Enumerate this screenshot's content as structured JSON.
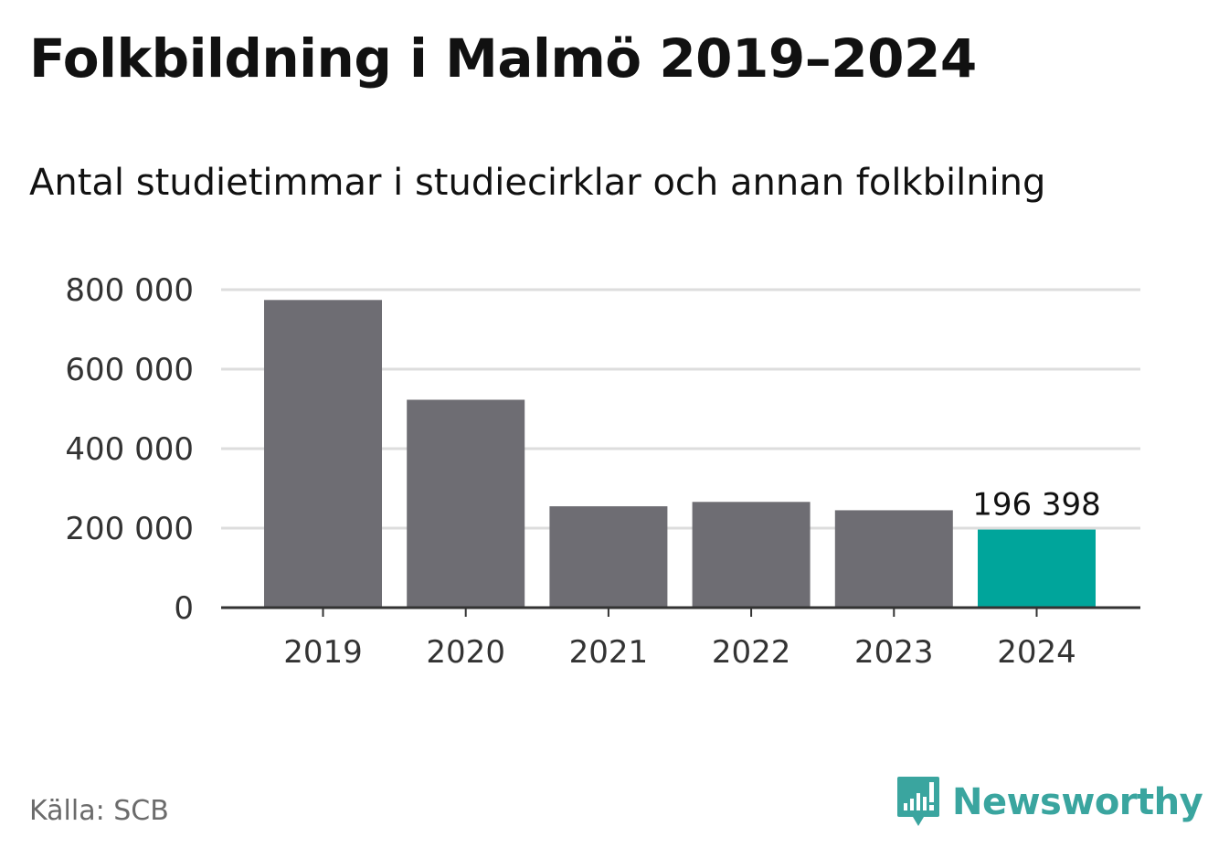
{
  "title": "Folkbildning i Malmö 2019–2024",
  "subtitle": "Antal studietimmar i studiecirklar och annan folkbilning",
  "source": "Källa: SCB",
  "brand": {
    "name": "Newsworthy",
    "icon": "newsworthy-logo-icon",
    "color": "#3aa59f"
  },
  "colors": {
    "bar": "#6e6d73",
    "highlight": "#00a59b",
    "grid": "#dddddd",
    "axis": "#333333"
  },
  "chart_data": {
    "type": "bar",
    "categories": [
      "2019",
      "2020",
      "2021",
      "2022",
      "2023",
      "2024"
    ],
    "values": [
      774000,
      523000,
      255000,
      266000,
      245000,
      196398
    ],
    "highlight_index": 5,
    "data_labels": [
      {
        "index": 5,
        "text": "196 398"
      }
    ],
    "ylim": [
      0,
      800000
    ],
    "yticks": [
      {
        "value": 0,
        "label": "0"
      },
      {
        "value": 200000,
        "label": "200 000"
      },
      {
        "value": 400000,
        "label": "400 000"
      },
      {
        "value": 600000,
        "label": "600 000"
      },
      {
        "value": 800000,
        "label": "800 000"
      }
    ],
    "grid": true,
    "legend": "none"
  }
}
